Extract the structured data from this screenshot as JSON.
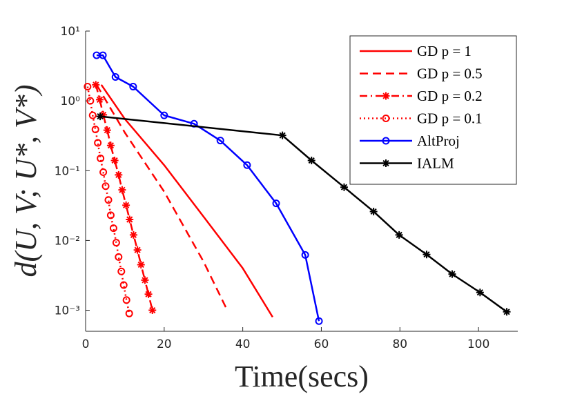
{
  "chart_data": {
    "type": "line",
    "xlabel": "Time(secs)",
    "ylabel": "d(U, V; U*, V*)",
    "xlim": [
      0,
      110
    ],
    "xticks": [
      0,
      20,
      40,
      60,
      80,
      100
    ],
    "ylim": [
      0.0005,
      10
    ],
    "yscale": "log",
    "yticks": [
      {
        "value": 0.001,
        "label": "10⁻³"
      },
      {
        "value": 0.01,
        "label": "10⁻²"
      },
      {
        "value": 0.1,
        "label": "10⁻¹"
      },
      {
        "value": 1,
        "label": "10⁰"
      },
      {
        "value": 10,
        "label": "10¹"
      }
    ],
    "grid": false,
    "legend": "northeast",
    "series": [
      {
        "name": "GD p = 1",
        "color": "#ff0000",
        "line_style": "solid",
        "marker": "none",
        "x": [
          4,
          10,
          20,
          30,
          40,
          47.6
        ],
        "values": [
          1.7,
          0.55,
          0.12,
          0.022,
          0.004,
          0.0008
        ]
      },
      {
        "name": "GD p = 0.5",
        "color": "#ff0000",
        "line_style": "dashed",
        "marker": "none",
        "x": [
          2.8,
          10,
          20,
          30,
          35.7
        ],
        "values": [
          1.7,
          0.35,
          0.05,
          0.005,
          0.0011
        ]
      },
      {
        "name": "GD p = 0.2",
        "color": "#ff0000",
        "line_style": "dashdot",
        "marker": "asterisk",
        "x": [
          2.6,
          3.6,
          4.5,
          5.5,
          6.4,
          7.4,
          8.4,
          9.3,
          10.3,
          11.2,
          12.2,
          13.2,
          14.1,
          15.1,
          16.0,
          17.0
        ],
        "values": [
          1.7,
          1.04,
          0.63,
          0.38,
          0.23,
          0.14,
          0.087,
          0.053,
          0.032,
          0.02,
          0.012,
          0.0073,
          0.0045,
          0.0027,
          0.0017,
          0.001
        ]
      },
      {
        "name": "GD p = 0.1",
        "color": "#ff0000",
        "line_style": "dotted",
        "marker": "circle",
        "x": [
          0.5,
          1.2,
          1.8,
          2.5,
          3.1,
          3.8,
          4.5,
          5.1,
          5.8,
          6.4,
          7.1,
          7.8,
          8.4,
          9.1,
          9.7,
          10.4,
          11.1
        ],
        "values": [
          1.6,
          1.0,
          0.62,
          0.39,
          0.25,
          0.15,
          0.095,
          0.06,
          0.038,
          0.023,
          0.015,
          0.0093,
          0.0058,
          0.0036,
          0.0023,
          0.0014,
          0.0009
        ]
      },
      {
        "name": "AltProj",
        "color": "#0000ff",
        "line_style": "solid",
        "marker": "circle",
        "x": [
          2.8,
          4.4,
          7.6,
          12.1,
          20.0,
          27.6,
          34.3,
          41.1,
          48.5,
          55.9,
          59.4
        ],
        "values": [
          4.5,
          4.5,
          2.2,
          1.6,
          0.62,
          0.47,
          0.27,
          0.12,
          0.034,
          0.0062,
          0.0007
        ]
      },
      {
        "name": "IALM",
        "color": "#000000",
        "line_style": "solid",
        "marker": "asterisk",
        "x": [
          3.7,
          50.1,
          57.5,
          65.8,
          73.3,
          79.8,
          86.8,
          93.3,
          100.4,
          107.2
        ],
        "values": [
          0.6,
          0.32,
          0.14,
          0.058,
          0.026,
          0.012,
          0.0063,
          0.0033,
          0.0018,
          0.00095
        ]
      }
    ]
  }
}
